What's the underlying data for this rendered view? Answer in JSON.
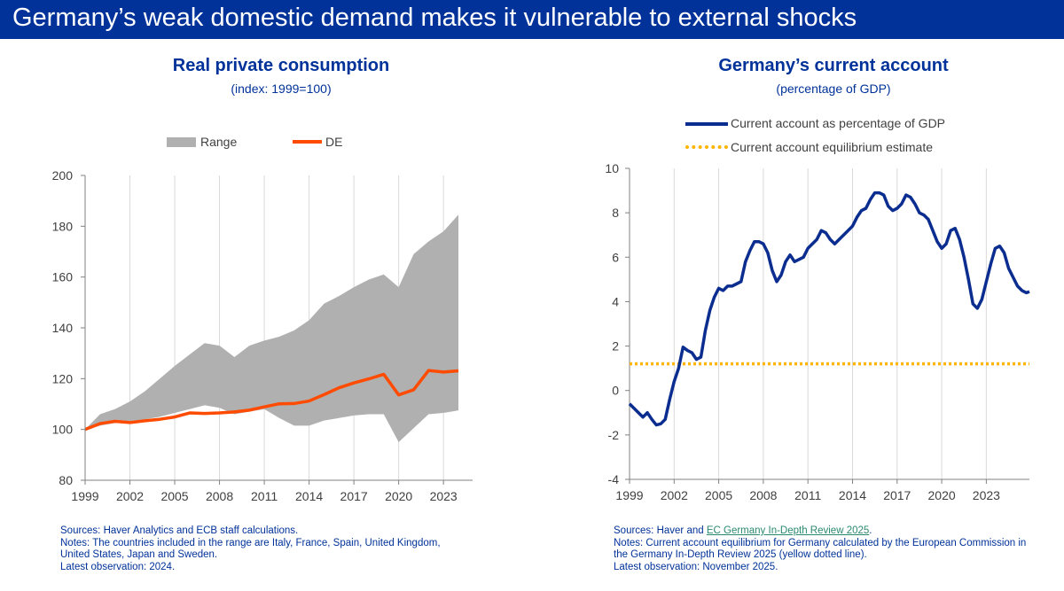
{
  "page": {
    "title": "Germany’s weak domestic demand makes it vulnerable to external shocks"
  },
  "left": {
    "title": "Real private consumption",
    "subtitle": "(index: 1999=100)",
    "sources": "Sources: Haver Analytics and ECB staff calculations.",
    "notes_line1": "Notes: The countries included in the range are Italy, France, Spain, United Kingdom,",
    "notes_line2": "United States, Japan and Sweden.",
    "latest": "Latest observation: 2024."
  },
  "right": {
    "title": "Germany’s current account",
    "subtitle": "(percentage of GDP)",
    "sources_prefix": "Sources: Haver and ",
    "sources_link": "EC Germany In-Depth Review 2025",
    "sources_suffix": ".",
    "notes_line1": "Notes: Current account equilibrium for Germany calculated by the European Commission in",
    "notes_line2": "the Germany In-Depth Review 2025 (yellow dotted line).",
    "latest": "Latest observation: November 2025."
  },
  "colors": {
    "brand_blue": "#003299",
    "range_grey": "#b0b0b0",
    "de_orange": "#ff4b00",
    "ca_line": "#0a2d8f",
    "equilibrium_yellow": "#ffb400"
  },
  "chart_data": [
    {
      "type": "area",
      "title": "Real private consumption",
      "subtitle": "(index: 1999=100)",
      "legend": [
        "Range",
        "DE"
      ],
      "legend_position": "top",
      "ylim": [
        80,
        200
      ],
      "yticks": [
        80,
        100,
        120,
        140,
        160,
        180,
        200
      ],
      "xlim": [
        1999,
        2024
      ],
      "xticks": [
        1999,
        2002,
        2005,
        2008,
        2011,
        2014,
        2017,
        2020,
        2023
      ],
      "grid": "vertical",
      "series": [
        {
          "name": "Range",
          "kind": "band",
          "x": [
            1999,
            2000,
            2001,
            2002,
            2003,
            2004,
            2005,
            2006,
            2007,
            2008,
            2009,
            2010,
            2011,
            2012,
            2013,
            2014,
            2015,
            2016,
            2017,
            2018,
            2019,
            2020,
            2021,
            2022,
            2023,
            2024
          ],
          "low": [
            100,
            101.5,
            102.5,
            103,
            104,
            105,
            106.5,
            108,
            109.5,
            108.5,
            106,
            107,
            108,
            104.5,
            101.5,
            101.5,
            103.5,
            104.5,
            105.5,
            106,
            106,
            95,
            100.5,
            106,
            106.5,
            107.5
          ],
          "high": [
            100,
            106,
            108,
            111,
            115,
            120,
            125,
            129.5,
            134,
            133,
            128.5,
            133,
            135,
            136.5,
            139,
            143,
            149.5,
            152.5,
            156,
            159,
            161,
            156,
            169,
            174,
            178,
            184.5
          ]
        },
        {
          "name": "DE",
          "kind": "line",
          "x": [
            1999,
            2000,
            2001,
            2002,
            2003,
            2004,
            2005,
            2006,
            2007,
            2008,
            2009,
            2010,
            2011,
            2012,
            2013,
            2014,
            2015,
            2016,
            2017,
            2018,
            2019,
            2020,
            2021,
            2022,
            2023,
            2024
          ],
          "y": [
            100,
            102.3,
            103.2,
            102.7,
            103.4,
            104,
            104.9,
            106.5,
            106.3,
            106.5,
            106.9,
            107.6,
            108.9,
            110.1,
            110.2,
            111.2,
            113.7,
            116.4,
            118.3,
            119.9,
            121.7,
            113.6,
            115.6,
            123.2,
            122.6,
            123.1
          ]
        }
      ]
    },
    {
      "type": "line",
      "title": "Germany’s current account",
      "subtitle": "(percentage of GDP)",
      "legend": [
        "Current account as percentage of GDP",
        "Current account equilibrium estimate"
      ],
      "legend_position": "top",
      "ylim": [
        -4,
        10
      ],
      "yticks": [
        -4,
        -2,
        0,
        2,
        4,
        6,
        8,
        10
      ],
      "xlim": [
        1999,
        2025.9
      ],
      "xticks": [
        1999,
        2002,
        2005,
        2008,
        2011,
        2014,
        2017,
        2020,
        2023
      ],
      "grid": "vertical",
      "series": [
        {
          "name": "Current account as percentage of GDP",
          "x": [
            1999.0,
            1999.3,
            1999.6,
            1999.9,
            2000.2,
            2000.5,
            2000.8,
            2001.1,
            2001.4,
            2001.7,
            2002.0,
            2002.3,
            2002.6,
            2002.9,
            2003.2,
            2003.5,
            2003.8,
            2004.1,
            2004.4,
            2004.7,
            2005.0,
            2005.3,
            2005.6,
            2005.9,
            2006.2,
            2006.5,
            2006.8,
            2007.1,
            2007.4,
            2007.7,
            2008.0,
            2008.3,
            2008.6,
            2008.9,
            2009.2,
            2009.5,
            2009.8,
            2010.1,
            2010.4,
            2010.7,
            2011.0,
            2011.3,
            2011.6,
            2011.9,
            2012.2,
            2012.5,
            2012.8,
            2013.1,
            2013.4,
            2013.7,
            2014.0,
            2014.3,
            2014.6,
            2014.9,
            2015.2,
            2015.5,
            2015.8,
            2016.1,
            2016.4,
            2016.7,
            2017.0,
            2017.3,
            2017.6,
            2017.9,
            2018.2,
            2018.5,
            2018.8,
            2019.1,
            2019.4,
            2019.7,
            2020.0,
            2020.3,
            2020.6,
            2020.9,
            2021.2,
            2021.5,
            2021.8,
            2022.1,
            2022.4,
            2022.7,
            2023.0,
            2023.3,
            2023.6,
            2023.9,
            2024.2,
            2024.5,
            2024.8,
            2025.1,
            2025.4,
            2025.7,
            2025.9
          ],
          "y": [
            -0.6,
            -0.8,
            -1.0,
            -1.2,
            -1.0,
            -1.3,
            -1.55,
            -1.5,
            -1.3,
            -0.4,
            0.4,
            1.0,
            1.95,
            1.8,
            1.7,
            1.4,
            1.5,
            2.7,
            3.6,
            4.2,
            4.6,
            4.5,
            4.7,
            4.7,
            4.8,
            4.9,
            5.8,
            6.3,
            6.7,
            6.7,
            6.6,
            6.2,
            5.4,
            4.9,
            5.2,
            5.8,
            6.1,
            5.8,
            5.9,
            6.0,
            6.4,
            6.6,
            6.8,
            7.2,
            7.1,
            6.8,
            6.6,
            6.8,
            7.0,
            7.2,
            7.4,
            7.8,
            8.1,
            8.2,
            8.6,
            8.9,
            8.9,
            8.8,
            8.3,
            8.1,
            8.2,
            8.4,
            8.8,
            8.7,
            8.4,
            8.0,
            7.9,
            7.7,
            7.2,
            6.7,
            6.4,
            6.6,
            7.2,
            7.3,
            6.8,
            6.0,
            5.0,
            3.9,
            3.7,
            4.1,
            4.9,
            5.7,
            6.4,
            6.5,
            6.2,
            5.5,
            5.1,
            4.7,
            4.5,
            4.4,
            4.45
          ]
        },
        {
          "name": "Current account equilibrium estimate",
          "x": [
            1999,
            2025.9
          ],
          "y": [
            1.2,
            1.2
          ]
        }
      ]
    }
  ]
}
